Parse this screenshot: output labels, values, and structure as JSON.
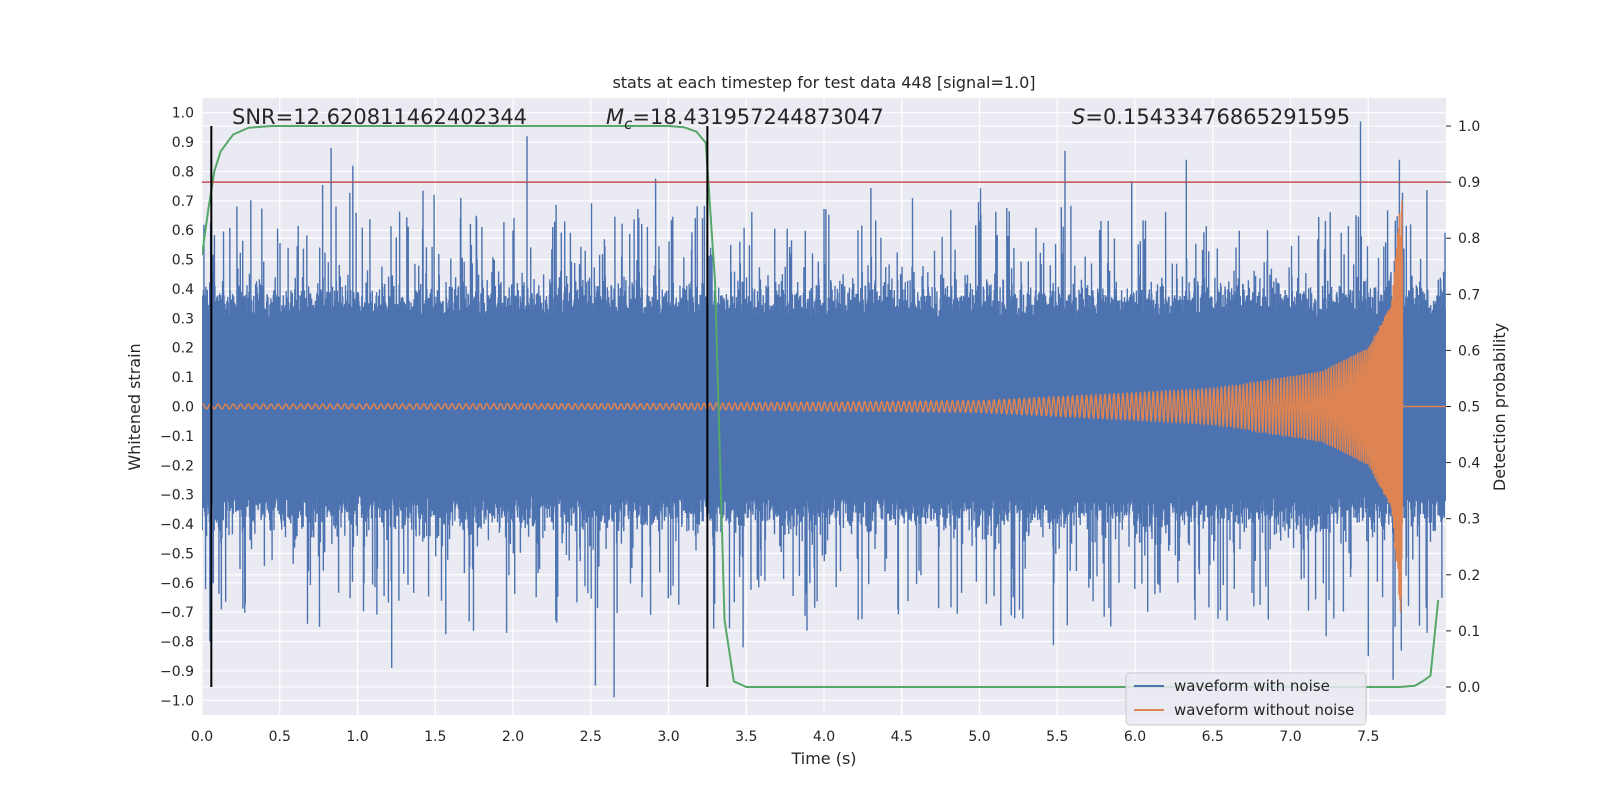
{
  "chart_data": {
    "type": "line",
    "title": "stats at each timestep for test data 448 [signal=1.0]",
    "xlabel": "Time (s)",
    "ylabel_left": "Whitened strain",
    "ylabel_right": "Detection probability",
    "xlim": [
      0.0,
      8.0
    ],
    "ylim_left": [
      -1.05,
      1.05
    ],
    "ylim_right": [
      -0.05,
      1.05
    ],
    "x_ticks": [
      "0.0",
      "0.5",
      "1.0",
      "1.5",
      "2.0",
      "2.5",
      "3.0",
      "3.5",
      "4.0",
      "4.5",
      "5.0",
      "5.5",
      "6.0",
      "6.5",
      "7.0",
      "7.5"
    ],
    "y_left_ticks": [
      "1.0",
      "0.9",
      "0.8",
      "0.7",
      "0.6",
      "0.5",
      "0.4",
      "0.3",
      "0.2",
      "0.1",
      "0.0",
      "−0.1",
      "−0.2",
      "−0.3",
      "−0.4",
      "−0.5",
      "−0.6",
      "−0.7",
      "−0.8",
      "−0.9",
      "−1.0"
    ],
    "y_right_ticks": [
      "1.0",
      "0.9",
      "0.8",
      "0.7",
      "0.6",
      "0.5",
      "0.4",
      "0.3",
      "0.2",
      "0.1",
      "0.0"
    ],
    "annotations": {
      "snr": "SNR=12.620811462402344",
      "mc_symbol": "M",
      "mc_sub": "c",
      "mc_value": "=18.431957244873047",
      "s_symbol": "S",
      "s_value": "=0.15433476865291595"
    },
    "vlines_x": [
      0.06,
      3.25
    ],
    "threshold_detection_prob": 0.9,
    "series": [
      {
        "name": "waveform with noise",
        "color": "#4c72b0",
        "axis": "left",
        "description_values": {
          "core_band": [
            -0.42,
            0.42
          ],
          "spikes_max": 0.97,
          "spikes_min": -1.0
        }
      },
      {
        "name": "waveform without noise",
        "color": "#dd8452",
        "axis": "left",
        "envelope": {
          "t": [
            0.0,
            3.0,
            5.0,
            6.5,
            7.2,
            7.5,
            7.65,
            7.72,
            7.73,
            8.0
          ],
          "amp": [
            0.008,
            0.01,
            0.02,
            0.06,
            0.12,
            0.2,
            0.35,
            0.78,
            0.0,
            0.0
          ]
        }
      },
      {
        "name": "detection probability",
        "color": "#55a868",
        "axis": "right",
        "x": [
          0.0,
          0.04,
          0.08,
          0.12,
          0.2,
          0.3,
          0.45,
          0.6,
          1.0,
          2.0,
          3.0,
          3.1,
          3.18,
          3.24,
          3.3,
          3.36,
          3.42,
          3.5,
          4.0,
          5.0,
          6.0,
          7.0,
          7.7,
          7.8,
          7.85,
          7.9,
          7.95
        ],
        "y": [
          0.77,
          0.85,
          0.92,
          0.955,
          0.985,
          0.997,
          1.0,
          1.0,
          1.0,
          1.0,
          1.0,
          0.998,
          0.99,
          0.97,
          0.72,
          0.12,
          0.01,
          0.0,
          0.0,
          0.0,
          0.0,
          0.0,
          0.0,
          0.002,
          0.01,
          0.02,
          0.155
        ]
      }
    ],
    "legend": {
      "position": "lower right",
      "entries": [
        "waveform with noise",
        "waveform without noise"
      ]
    },
    "colors": {
      "background": "#eaeaf2",
      "grid": "#ffffff",
      "threshold": "#c44e52",
      "vline": "#000000"
    }
  }
}
